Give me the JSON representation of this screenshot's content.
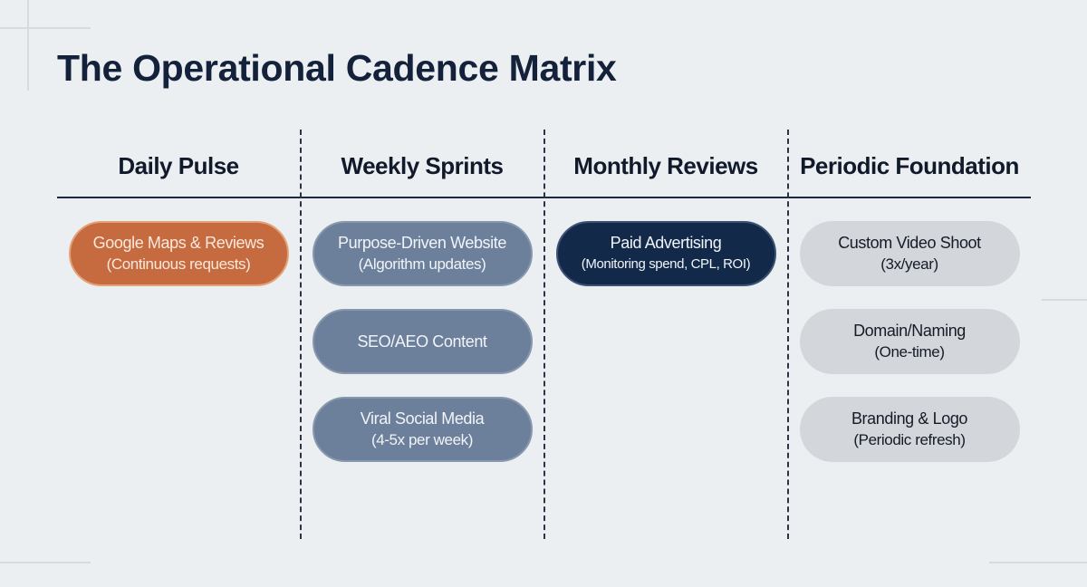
{
  "title": "The Operational Cadence Matrix",
  "colors": {
    "background": "#eceff1",
    "daily": "#c66a3f",
    "weekly": "#6c7f9b",
    "monthly": "#13294a",
    "periodic": "#d3d6da",
    "text": "#14213a"
  },
  "columns": [
    {
      "heading": "Daily Pulse",
      "items": [
        {
          "label": "Google Maps & Reviews",
          "detail": "(Continuous requests)"
        }
      ]
    },
    {
      "heading": "Weekly Sprints",
      "items": [
        {
          "label": "Purpose-Driven Website",
          "detail": "(Algorithm updates)"
        },
        {
          "label": "SEO/AEO Content",
          "detail": ""
        },
        {
          "label": "Viral Social Media",
          "detail": "(4-5x per week)"
        }
      ]
    },
    {
      "heading": "Monthly Reviews",
      "items": [
        {
          "label": "Paid Advertising",
          "detail": "(Monitoring spend, CPL, ROI)"
        }
      ]
    },
    {
      "heading": "Periodic Foundation",
      "items": [
        {
          "label": "Custom Video Shoot",
          "detail": "(3x/year)"
        },
        {
          "label": "Domain/Naming",
          "detail": "(One-time)"
        },
        {
          "label": "Branding & Logo",
          "detail": "(Periodic refresh)"
        }
      ]
    }
  ]
}
